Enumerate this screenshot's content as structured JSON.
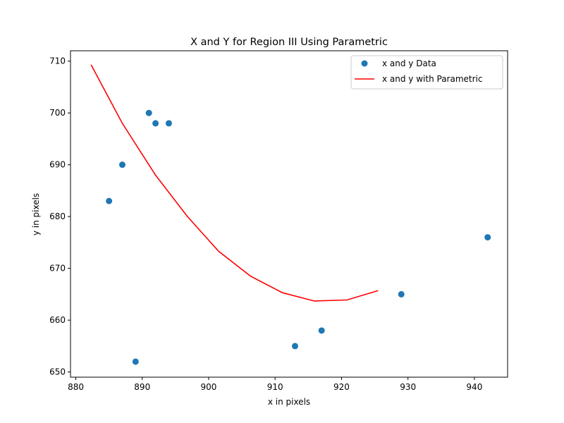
{
  "chart_data": {
    "type": "scatter",
    "title": "X and Y for Region III Using Parametric",
    "xlabel": "x in pixels",
    "ylabel": "y in pixels",
    "xlim": [
      879.2,
      945.0
    ],
    "ylim": [
      649.0,
      712.0
    ],
    "xticks": [
      880,
      890,
      900,
      910,
      920,
      930,
      940
    ],
    "yticks": [
      650,
      660,
      670,
      680,
      690,
      700,
      710
    ],
    "grid": false,
    "legend_position": "top-right",
    "colors": {
      "scatter": "#1f77b4",
      "line": "#ff0000"
    },
    "series": [
      {
        "name": "x and y Data",
        "kind": "scatter",
        "points": [
          {
            "x": 885,
            "y": 683
          },
          {
            "x": 887,
            "y": 690
          },
          {
            "x": 889,
            "y": 652
          },
          {
            "x": 891,
            "y": 700
          },
          {
            "x": 892,
            "y": 698
          },
          {
            "x": 894,
            "y": 698
          },
          {
            "x": 913,
            "y": 655
          },
          {
            "x": 917,
            "y": 658
          },
          {
            "x": 929,
            "y": 665
          },
          {
            "x": 942,
            "y": 676
          }
        ]
      },
      {
        "name": "x and y with Parametric",
        "kind": "line",
        "points": [
          {
            "x": 882.3,
            "y": 709.3
          },
          {
            "x": 887.0,
            "y": 698.0
          },
          {
            "x": 892.0,
            "y": 688.0
          },
          {
            "x": 896.8,
            "y": 680.0
          },
          {
            "x": 901.5,
            "y": 673.3
          },
          {
            "x": 906.3,
            "y": 668.5
          },
          {
            "x": 911.1,
            "y": 665.3
          },
          {
            "x": 915.9,
            "y": 663.7
          },
          {
            "x": 920.8,
            "y": 663.9
          },
          {
            "x": 925.5,
            "y": 665.7
          }
        ]
      }
    ]
  }
}
